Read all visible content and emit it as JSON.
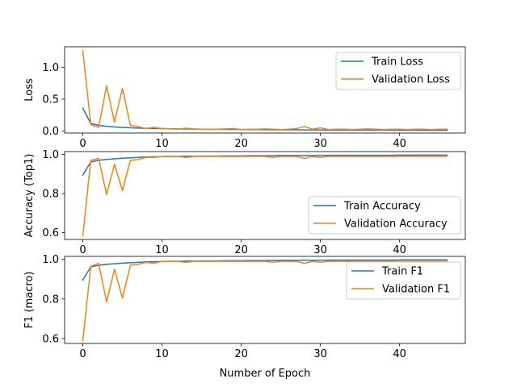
{
  "colors": {
    "train": "#1f77b4",
    "validation": "#ff7f0e"
  },
  "chart_data": [
    {
      "type": "line",
      "ylabel": "Loss",
      "xlabel": "",
      "ylim": [
        -0.03,
        1.32
      ],
      "xlim": [
        -2.3,
        48.3
      ],
      "yticks": [
        0.0,
        0.5,
        1.0
      ],
      "ytick_labels": [
        "0.0",
        "0.5",
        "1.0"
      ],
      "xticks": [
        0,
        10,
        20,
        30,
        40
      ],
      "xtick_labels": [
        "0",
        "10",
        "20",
        "30",
        "40"
      ],
      "legend_position": "top-right",
      "series": [
        {
          "name": "Train Loss",
          "color_key": "train",
          "values": [
            0.36,
            0.12,
            0.09,
            0.075,
            0.065,
            0.058,
            0.052,
            0.048,
            0.044,
            0.041,
            0.039,
            0.037,
            0.035,
            0.033,
            0.031,
            0.03,
            0.029,
            0.028,
            0.027,
            0.026,
            0.025,
            0.024,
            0.023,
            0.022,
            0.021,
            0.021,
            0.02,
            0.02,
            0.019,
            0.019,
            0.018,
            0.018,
            0.017,
            0.017,
            0.016,
            0.016,
            0.016,
            0.015,
            0.015,
            0.015,
            0.014,
            0.014,
            0.014,
            0.013,
            0.013,
            0.013,
            0.013
          ]
        },
        {
          "name": "Validation Loss",
          "color_key": "validation",
          "values": [
            1.26,
            0.1,
            0.06,
            0.71,
            0.14,
            0.67,
            0.09,
            0.07,
            0.04,
            0.06,
            0.04,
            0.035,
            0.03,
            0.045,
            0.035,
            0.03,
            0.03,
            0.03,
            0.035,
            0.04,
            0.025,
            0.03,
            0.03,
            0.035,
            0.03,
            0.025,
            0.03,
            0.04,
            0.07,
            0.03,
            0.05,
            0.025,
            0.03,
            0.03,
            0.025,
            0.03,
            0.035,
            0.03,
            0.025,
            0.03,
            0.03,
            0.025,
            0.03,
            0.03,
            0.025,
            0.03,
            0.03
          ]
        }
      ]
    },
    {
      "type": "line",
      "ylabel": "Accuracy (Top1)",
      "xlabel": "",
      "ylim": [
        0.565,
        1.015
      ],
      "xlim": [
        -2.3,
        48.3
      ],
      "yticks": [
        0.6,
        0.8,
        1.0
      ],
      "ytick_labels": [
        "0.6",
        "0.8",
        "1.0"
      ],
      "xticks": [
        0,
        10,
        20,
        30,
        40
      ],
      "xtick_labels": [
        "0",
        "10",
        "20",
        "30",
        "40"
      ],
      "legend_position": "lower-right",
      "series": [
        {
          "name": "Train Accuracy",
          "color_key": "train",
          "values": [
            0.895,
            0.962,
            0.97,
            0.975,
            0.978,
            0.981,
            0.983,
            0.985,
            0.987,
            0.988,
            0.989,
            0.99,
            0.99,
            0.991,
            0.991,
            0.992,
            0.992,
            0.992,
            0.993,
            0.993,
            0.993,
            0.994,
            0.994,
            0.994,
            0.994,
            0.995,
            0.995,
            0.995,
            0.995,
            0.995,
            0.995,
            0.996,
            0.996,
            0.996,
            0.996,
            0.996,
            0.996,
            0.996,
            0.996,
            0.996,
            0.997,
            0.997,
            0.997,
            0.997,
            0.997,
            0.997,
            0.997
          ]
        },
        {
          "name": "Validation Accuracy",
          "color_key": "validation",
          "values": [
            0.585,
            0.97,
            0.98,
            0.795,
            0.95,
            0.815,
            0.97,
            0.975,
            0.985,
            0.985,
            0.99,
            0.99,
            0.99,
            0.985,
            0.99,
            0.99,
            0.99,
            0.99,
            0.99,
            0.99,
            0.99,
            0.99,
            0.99,
            0.99,
            0.985,
            0.99,
            0.99,
            0.99,
            0.98,
            0.99,
            0.985,
            0.99,
            0.99,
            0.99,
            0.99,
            0.99,
            0.99,
            0.99,
            0.99,
            0.99,
            0.99,
            0.99,
            0.99,
            0.99,
            0.99,
            0.99,
            0.99
          ]
        }
      ]
    },
    {
      "type": "line",
      "ylabel": "F1 (macro)",
      "xlabel": "Number of Epoch",
      "ylim": [
        0.575,
        1.015
      ],
      "xlim": [
        -2.3,
        48.3
      ],
      "yticks": [
        0.6,
        0.8,
        1.0
      ],
      "ytick_labels": [
        "0.6",
        "0.8",
        "1.0"
      ],
      "xticks": [
        0,
        10,
        20,
        30,
        40
      ],
      "xtick_labels": [
        "0",
        "10",
        "20",
        "30",
        "40"
      ],
      "legend_position": "upper-right",
      "series": [
        {
          "name": "Train F1",
          "color_key": "train",
          "values": [
            0.895,
            0.962,
            0.97,
            0.975,
            0.978,
            0.981,
            0.983,
            0.985,
            0.987,
            0.988,
            0.989,
            0.99,
            0.99,
            0.991,
            0.991,
            0.992,
            0.992,
            0.992,
            0.993,
            0.993,
            0.993,
            0.994,
            0.994,
            0.994,
            0.994,
            0.995,
            0.995,
            0.995,
            0.995,
            0.995,
            0.995,
            0.996,
            0.996,
            0.996,
            0.996,
            0.996,
            0.996,
            0.996,
            0.996,
            0.996,
            0.997,
            0.997,
            0.997,
            0.997,
            0.997,
            0.997,
            0.997
          ]
        },
        {
          "name": "Validation F1",
          "color_key": "validation",
          "values": [
            0.59,
            0.965,
            0.98,
            0.785,
            0.95,
            0.805,
            0.97,
            0.975,
            0.985,
            0.98,
            0.99,
            0.99,
            0.99,
            0.985,
            0.99,
            0.99,
            0.99,
            0.99,
            0.99,
            0.99,
            0.99,
            0.99,
            0.99,
            0.99,
            0.985,
            0.99,
            0.99,
            0.99,
            0.98,
            0.99,
            0.985,
            0.99,
            0.99,
            0.99,
            0.99,
            0.99,
            0.99,
            0.99,
            0.99,
            0.99,
            0.99,
            0.99,
            0.99,
            0.99,
            0.99,
            0.99,
            0.99
          ]
        }
      ]
    }
  ]
}
